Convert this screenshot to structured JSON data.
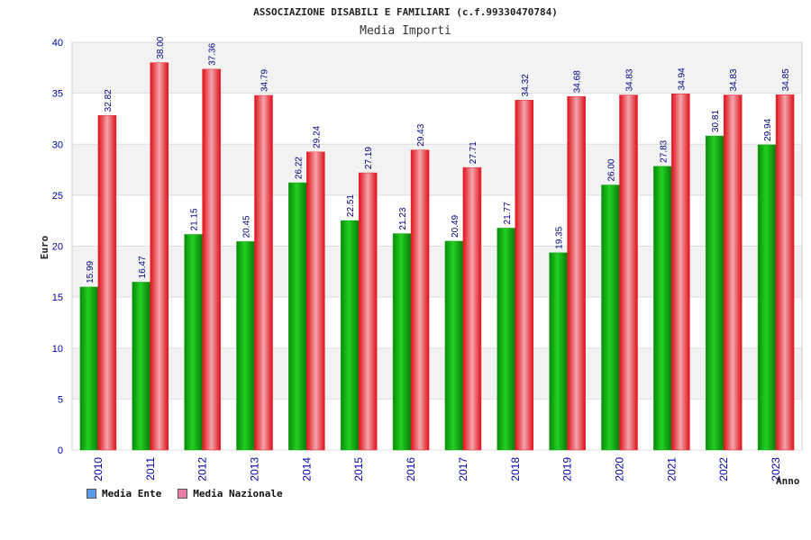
{
  "chart_data": {
    "type": "bar",
    "title": "ASSOCIAZIONE DISABILI E FAMILIARI (c.f.99330470784)",
    "subtitle": "Media Importi",
    "ylabel": "Euro",
    "xlabel": "Anno",
    "ylim": [
      0,
      40
    ],
    "yticks": [
      0,
      5,
      10,
      15,
      20,
      25,
      30,
      35,
      40
    ],
    "categories": [
      "2010",
      "2011",
      "2012",
      "2013",
      "2014",
      "2015",
      "2016",
      "2017",
      "2018",
      "2019",
      "2020",
      "2021",
      "2022",
      "2023"
    ],
    "series": [
      {
        "name": "Media Ente",
        "legend_color": "#5b9be8",
        "bar_color": "#1aa81a",
        "values": [
          15.99,
          16.47,
          21.15,
          20.45,
          26.22,
          22.51,
          21.23,
          20.49,
          21.77,
          19.35,
          26.0,
          27.83,
          30.81,
          29.94
        ],
        "labels": [
          "15.99",
          "16.47",
          "21.15",
          "20.45",
          "26.22",
          "22.51",
          "21.23",
          "20.49",
          "21.77",
          "19.35",
          "26.00",
          "27.83",
          "30.81",
          "29.94"
        ]
      },
      {
        "name": "Media Nazionale",
        "legend_color": "#e77fa8",
        "bar_color": "#e8202a",
        "values": [
          32.82,
          38.0,
          37.36,
          34.79,
          29.24,
          27.19,
          29.43,
          27.71,
          34.32,
          34.68,
          34.83,
          34.94,
          34.83,
          34.85
        ],
        "labels": [
          "32.82",
          "38.00",
          "37.36",
          "34.79",
          "29.24",
          "27.19",
          "29.43",
          "27.71",
          "34.32",
          "34.68",
          "34.83",
          "34.94",
          "34.83",
          "34.85"
        ]
      }
    ]
  }
}
